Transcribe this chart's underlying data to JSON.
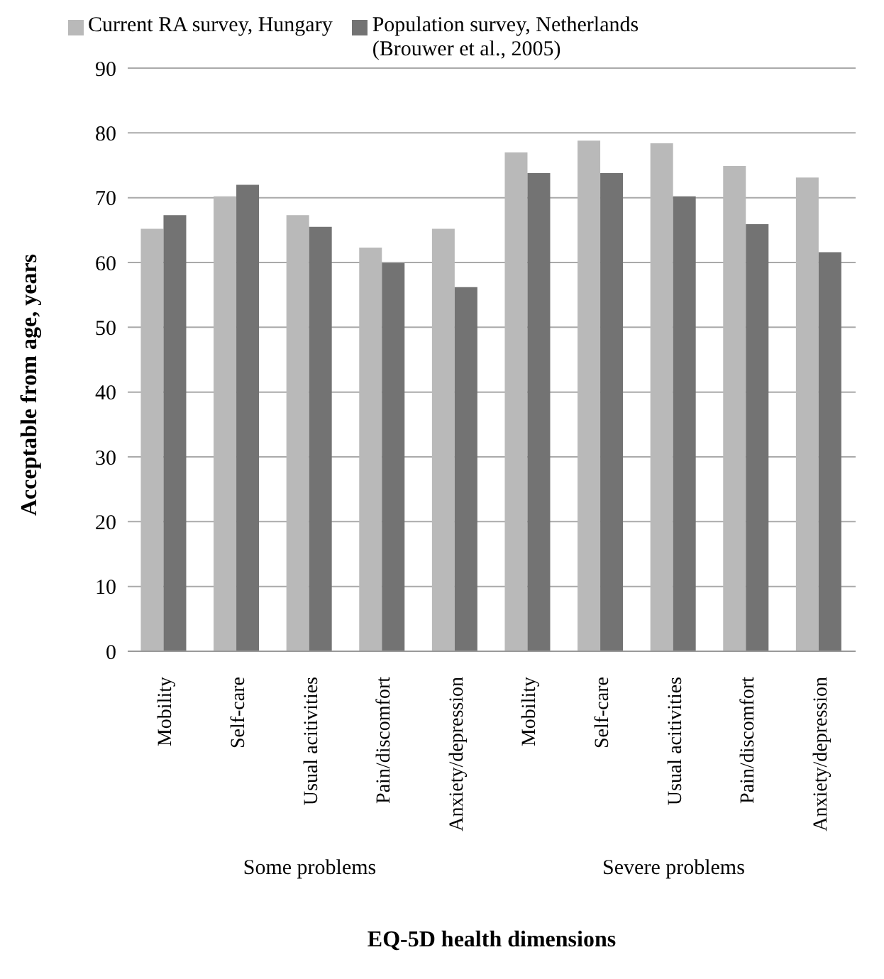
{
  "chart_data": {
    "type": "bar",
    "xlabel": "EQ-5D health dimensions",
    "ylabel": "Acceptable from age, years",
    "categories": [
      "Mobility",
      "Self-care",
      "Usual acitivities",
      "Pain/discomfort",
      "Anxiety/depression",
      "Mobility",
      "Self-care",
      "Usual acitivities",
      "Pain/discomfort",
      "Anxiety/depression"
    ],
    "series": [
      {
        "name": "Current RA survey, Hungary",
        "color": "#b9b9b9",
        "values": [
          65.2,
          70.2,
          67.3,
          62.3,
          65.2,
          77.0,
          78.8,
          78.4,
          74.9,
          73.1
        ]
      },
      {
        "name": "Population survey, Netherlands (Brouwer et al., 2005)",
        "color": "#737373",
        "values": [
          67.3,
          72.0,
          65.5,
          59.9,
          56.2,
          73.8,
          73.8,
          70.2,
          65.9,
          61.6
        ]
      }
    ],
    "annotations": [
      "Some problems",
      "Severe problems"
    ],
    "ylim": [
      0,
      90
    ],
    "yticks": [
      0,
      10,
      20,
      30,
      40,
      50,
      60,
      70,
      80,
      90
    ],
    "grid": "y",
    "legend": "top"
  }
}
